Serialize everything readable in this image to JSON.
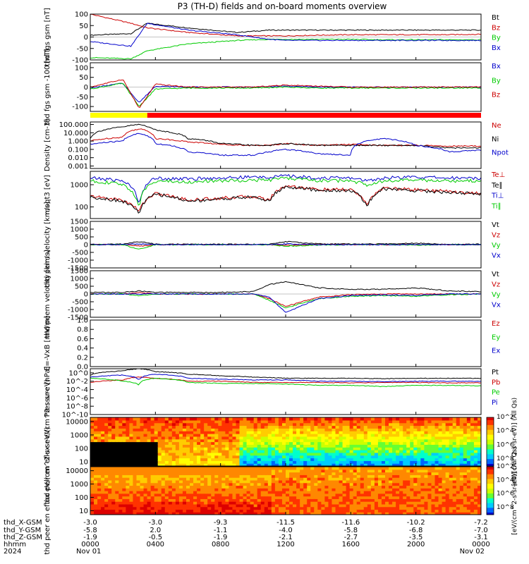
{
  "chart_data": [
    {
      "type": "line",
      "title": "P3 (TH-D) fields and on-board moments overview",
      "ylabel": "thd fgs gsm [nT]",
      "ylim": [
        -100,
        100
      ],
      "yticks": [
        "100",
        "50",
        "0",
        "-50",
        "-100"
      ],
      "x_hours": [
        0,
        2.5,
        3.5,
        6,
        9,
        11,
        12,
        14,
        16,
        18,
        20,
        22,
        24
      ],
      "series": [
        {
          "name": "Bt",
          "color": "#000000",
          "values": [
            8,
            15,
            60,
            40,
            20,
            30,
            30,
            30,
            30,
            30,
            30,
            30,
            30
          ]
        },
        {
          "name": "Bz",
          "color": "#cc0000",
          "values": [
            100,
            60,
            40,
            20,
            5,
            5,
            5,
            8,
            10,
            10,
            10,
            10,
            12
          ]
        },
        {
          "name": "By",
          "color": "#00cc00",
          "values": [
            -90,
            -95,
            -60,
            -30,
            -15,
            -10,
            -10,
            -10,
            -10,
            -12,
            -12,
            -12,
            -12
          ]
        },
        {
          "name": "Bx",
          "color": "#0000cc",
          "values": [
            -20,
            -40,
            60,
            30,
            10,
            -10,
            -15,
            -15,
            -15,
            -15,
            -15,
            -15,
            -15
          ]
        }
      ]
    },
    {
      "type": "line",
      "ylabel": "thd fgs gsm -100 [nT]",
      "ylim": [
        -125,
        125
      ],
      "yticks": [
        "100",
        "50",
        "0",
        "-50",
        "-100"
      ],
      "x_hours": [
        0,
        2,
        3,
        4,
        6,
        8,
        10,
        12,
        14,
        16,
        18,
        20,
        24
      ],
      "series": [
        {
          "name": "Bx",
          "color": "#0000cc",
          "values": [
            -5,
            20,
            -80,
            5,
            0,
            0,
            0,
            5,
            0,
            0,
            0,
            0,
            0
          ]
        },
        {
          "name": "By",
          "color": "#00cc00",
          "values": [
            -10,
            20,
            -100,
            -10,
            -5,
            -5,
            -5,
            0,
            -5,
            -5,
            -5,
            -5,
            -5
          ]
        },
        {
          "name": "Bz",
          "color": "#cc0000",
          "values": [
            0,
            40,
            -110,
            15,
            0,
            0,
            0,
            10,
            5,
            0,
            0,
            0,
            0
          ]
        }
      ]
    },
    {
      "type": "line",
      "ylabel": "Density [cm-3]",
      "yscale": "log",
      "ylim": [
        0.0005,
        200
      ],
      "yticks": [
        "100.000",
        "10.000",
        "1.000",
        "0.100",
        "0.010",
        "0.001"
      ],
      "x_hours": [
        0,
        2,
        3,
        4,
        6,
        8,
        10,
        11,
        12,
        14,
        16,
        18,
        20,
        22,
        24
      ],
      "series": [
        {
          "name": "Ne",
          "color": "#cc0000",
          "values": [
            1,
            3,
            30,
            2,
            0.8,
            0.4,
            0.3,
            0.3,
            0.5,
            0.3,
            0.4,
            0.3,
            0.3,
            0.25,
            0.25
          ]
        },
        {
          "name": "Ni",
          "color": "#000000",
          "values": [
            2,
            50,
            100,
            20,
            2,
            0.5,
            0.3,
            0.3,
            0.5,
            0.3,
            0.3,
            0.3,
            0.3,
            0.15,
            0.15
          ]
        },
        {
          "name": "Npot",
          "color": "#0000cc",
          "values": [
            0.4,
            1,
            8,
            0.5,
            0.05,
            0.02,
            0.02,
            0.05,
            0.1,
            0.03,
            0.02,
            2,
            0.3,
            0.05,
            0.08
          ]
        }
      ]
    },
    {
      "type": "line",
      "ylabel": "moqt3 [eV]",
      "yscale": "log",
      "ylim": [
        30,
        4000
      ],
      "yticks": [
        "1000",
        "100"
      ],
      "x_hours": [
        0,
        2,
        3,
        4,
        6,
        8,
        10,
        11,
        12,
        14,
        16,
        17,
        18,
        20,
        22,
        24
      ],
      "series": [
        {
          "name": "Te⊥",
          "color": "#cc0000",
          "values": [
            300,
            200,
            60,
            400,
            200,
            250,
            300,
            200,
            900,
            600,
            600,
            100,
            700,
            600,
            500,
            400
          ]
        },
        {
          "name": "Te∥",
          "color": "#000000",
          "values": [
            280,
            180,
            50,
            380,
            180,
            230,
            280,
            180,
            800,
            550,
            550,
            90,
            650,
            550,
            450,
            380
          ]
        },
        {
          "name": "Ti⊥",
          "color": "#0000cc",
          "values": [
            2000,
            1500,
            100,
            2000,
            1800,
            2000,
            2200,
            2200,
            2500,
            2000,
            2000,
            1500,
            2000,
            2200,
            2000,
            2000
          ]
        },
        {
          "name": "Ti∥",
          "color": "#00cc00",
          "values": [
            1500,
            1000,
            80,
            1500,
            1300,
            1500,
            1600,
            1600,
            2000,
            1500,
            1500,
            1000,
            1500,
            1600,
            1500,
            1500
          ]
        }
      ]
    },
    {
      "type": "line",
      "ylabel": "thd peim velocity [km/s]",
      "ylim": [
        -1500,
        1500
      ],
      "yticks": [
        "1500",
        "1000",
        "500",
        "0",
        "-500",
        "-1000",
        "-1500"
      ],
      "x_hours": [
        0,
        2,
        3,
        4,
        8,
        11,
        12,
        14,
        16,
        18,
        20,
        22,
        24
      ],
      "series": [
        {
          "name": "Vt",
          "color": "#000000",
          "values": [
            20,
            30,
            200,
            30,
            20,
            20,
            200,
            50,
            40,
            40,
            100,
            30,
            30
          ]
        },
        {
          "name": "Vz",
          "color": "#cc0000",
          "values": [
            0,
            0,
            -100,
            0,
            0,
            0,
            -50,
            0,
            0,
            0,
            0,
            0,
            0
          ]
        },
        {
          "name": "Vy",
          "color": "#00cc00",
          "values": [
            0,
            0,
            -300,
            0,
            0,
            0,
            -100,
            -30,
            0,
            0,
            -30,
            0,
            0
          ]
        },
        {
          "name": "Vx",
          "color": "#0000cc",
          "values": [
            0,
            0,
            50,
            0,
            0,
            0,
            50,
            0,
            0,
            0,
            0,
            0,
            0
          ]
        }
      ]
    },
    {
      "type": "line",
      "ylabel": "thd peem velocity [km/s]",
      "ylim": [
        -1500,
        1500
      ],
      "yticks": [
        "1500",
        "1000",
        "500",
        "0",
        "-500",
        "-1000",
        "-1500"
      ],
      "x_hours": [
        0,
        2,
        3,
        4,
        8,
        10,
        11,
        12,
        14,
        16,
        18,
        20,
        22,
        24
      ],
      "series": [
        {
          "name": "Vt",
          "color": "#000000",
          "values": [
            100,
            100,
            200,
            100,
            100,
            150,
            600,
            800,
            400,
            300,
            300,
            400,
            200,
            150
          ]
        },
        {
          "name": "Vz",
          "color": "#cc0000",
          "values": [
            0,
            0,
            100,
            0,
            0,
            0,
            -300,
            -800,
            -200,
            -50,
            0,
            0,
            0,
            0
          ]
        },
        {
          "name": "Vy",
          "color": "#00cc00",
          "values": [
            0,
            0,
            -100,
            0,
            0,
            0,
            -400,
            -900,
            -300,
            -150,
            -100,
            -150,
            -50,
            0
          ]
        },
        {
          "name": "Vx",
          "color": "#0000cc",
          "values": [
            0,
            0,
            0,
            0,
            0,
            0,
            -200,
            -1200,
            -300,
            -100,
            -50,
            -100,
            0,
            0
          ]
        }
      ]
    },
    {
      "type": "line",
      "ylabel": "E=-VxB [mV/m]",
      "ylim": [
        0,
        1
      ],
      "yticks": [
        "1.0",
        "0.8",
        "0.6",
        "0.4",
        "0.2",
        "0.0"
      ],
      "series": [
        {
          "name": "Ez",
          "color": "#cc0000",
          "values": []
        },
        {
          "name": "Ey",
          "color": "#00cc00",
          "values": []
        },
        {
          "name": "Ex",
          "color": "#0000cc",
          "values": []
        }
      ]
    },
    {
      "type": "line",
      "ylabel": "Pressure [nPa]",
      "yscale": "log",
      "ylim": [
        1e-10,
        10
      ],
      "yticks": [
        "10^0",
        "10^-2",
        "10^-4",
        "10^-6",
        "10^-8",
        "10^-10"
      ],
      "x_hours": [
        0,
        2,
        3,
        4,
        6,
        8,
        10,
        12,
        14,
        16,
        18,
        20,
        22,
        24
      ],
      "series": [
        {
          "name": "Pt",
          "color": "#000000",
          "values": [
            0.3,
            3,
            10,
            2,
            0.5,
            0.2,
            0.1,
            0.05,
            0.05,
            0.05,
            0.04,
            0.05,
            0.05,
            0.05
          ]
        },
        {
          "name": "Pb",
          "color": "#cc0000",
          "values": [
            0.005,
            0.02,
            0.1,
            0.05,
            0.01,
            0.01,
            0.005,
            0.005,
            0.005,
            0.004,
            0.005,
            0.005,
            0.004,
            0.004
          ]
        },
        {
          "name": "Pe",
          "color": "#00cc00",
          "values": [
            0.05,
            0.01,
            0.001,
            0.05,
            0.005,
            0.003,
            0.003,
            0.002,
            0.001,
            0.001,
            0.0005,
            0.001,
            0.001,
            0.0008
          ]
        },
        {
          "name": "Pi",
          "color": "#0000cc",
          "values": [
            0.1,
            0.3,
            0.01,
            0.5,
            0.05,
            0.03,
            0.02,
            0.02,
            0.01,
            0.01,
            0.008,
            0.01,
            0.01,
            0.01
          ]
        }
      ]
    },
    {
      "type": "heatmap",
      "ylabel": "thd peir en eflux eV/(cm^2-s-sr-eV)",
      "yscale": "log",
      "ylim": [
        5,
        20000
      ],
      "yticks": [
        "10000",
        "1000",
        "100",
        "10"
      ],
      "colorbar": {
        "label": "[eV/(cm^2-s-sr-eV)] (All Qs)",
        "ticks": [
          "10^8",
          "10^6",
          "10^4",
          "10^2"
        ]
      }
    },
    {
      "type": "heatmap",
      "ylabel": "thd peer en eflux eV/(cm^2-s-sr-eV)",
      "yscale": "log",
      "ylim": [
        5,
        20000
      ],
      "yticks": [
        "10000",
        "1000",
        "100",
        "10"
      ],
      "colorbar": {
        "label": "[eV/(cm^2-s-sr-eV)] (All Qs)",
        "ticks": [
          "10^8",
          "10^6",
          "10^4",
          "10^2"
        ]
      }
    }
  ],
  "footer": {
    "row_labels": [
      "thd_X-GSM",
      "thd_Y-GSM",
      "thd_Z-GSM",
      "hhmm",
      "2024"
    ],
    "ticks": [
      {
        "x": "-3.0",
        "y": "-5.8",
        "z": "-1.9",
        "time": "0000",
        "date": "Nov 01"
      },
      {
        "x": "-3.0",
        "y": "2.0",
        "z": "-0.5",
        "time": "0400",
        "date": ""
      },
      {
        "x": "-9.3",
        "y": "-1.1",
        "z": "-1.9",
        "time": "0800",
        "date": ""
      },
      {
        "x": "-11.5",
        "y": "-4.0",
        "z": "-2.1",
        "time": "1200",
        "date": ""
      },
      {
        "x": "-11.6",
        "y": "-5.8",
        "z": "-2.7",
        "time": "1600",
        "date": ""
      },
      {
        "x": "-10.2",
        "y": "-6.8",
        "z": "-3.5",
        "time": "2000",
        "date": ""
      },
      {
        "x": "-7.2",
        "y": "-7.0",
        "z": "-3.1",
        "time": "0000",
        "date": "Nov 02"
      }
    ]
  },
  "status_bar": {
    "segments": [
      {
        "from": 0,
        "to": 3.5,
        "color": "#ffff00"
      },
      {
        "from": 3.5,
        "to": 24,
        "color": "#ff0000"
      }
    ]
  }
}
